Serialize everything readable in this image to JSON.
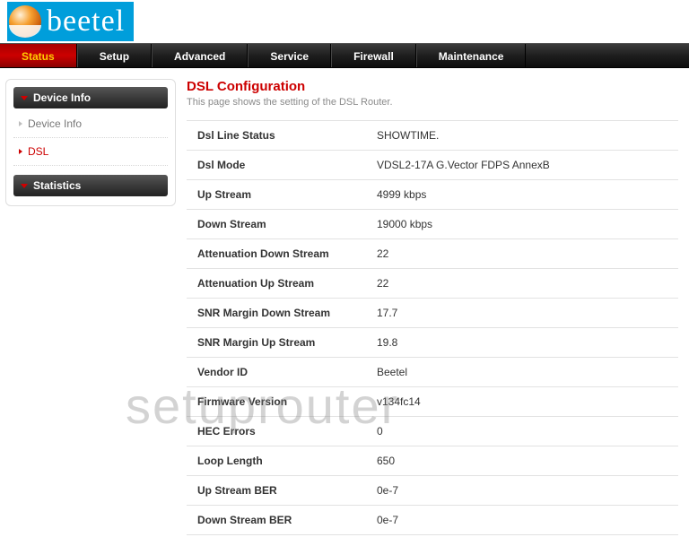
{
  "brand": {
    "name": "beetel"
  },
  "nav": {
    "items": [
      {
        "label": "Status",
        "active": true
      },
      {
        "label": "Setup",
        "active": false
      },
      {
        "label": "Advanced",
        "active": false
      },
      {
        "label": "Service",
        "active": false
      },
      {
        "label": "Firewall",
        "active": false
      },
      {
        "label": "Maintenance",
        "active": false
      }
    ]
  },
  "sidebar": {
    "sections": [
      {
        "title": "Device Info",
        "items": [
          {
            "label": "Device Info",
            "active": false
          },
          {
            "label": "DSL",
            "active": true
          }
        ]
      },
      {
        "title": "Statistics",
        "items": []
      }
    ]
  },
  "page": {
    "title": "DSL Configuration",
    "subtitle": "This page shows the setting of the DSL Router."
  },
  "config_rows": [
    {
      "label": "Dsl Line Status",
      "value": "SHOWTIME."
    },
    {
      "label": "Dsl Mode",
      "value": "VDSL2-17A G.Vector FDPS AnnexB"
    },
    {
      "label": "Up Stream",
      "value": "4999 kbps"
    },
    {
      "label": "Down Stream",
      "value": "19000 kbps"
    },
    {
      "label": "Attenuation Down Stream",
      "value": "22"
    },
    {
      "label": "Attenuation Up Stream",
      "value": "22"
    },
    {
      "label": "SNR Margin Down Stream",
      "value": "17.7"
    },
    {
      "label": "SNR Margin Up Stream",
      "value": "19.8"
    },
    {
      "label": "Vendor ID",
      "value": "Beetel"
    },
    {
      "label": "Firmware Version",
      "value": "v134fc14"
    },
    {
      "label": "HEC Errors",
      "value": "0"
    },
    {
      "label": "Loop Length",
      "value": "650"
    },
    {
      "label": "Up Stream BER",
      "value": "0e-7"
    },
    {
      "label": "Down Stream BER",
      "value": "0e-7"
    }
  ],
  "watermark": "setuprouter",
  "colors": {
    "accent": "#cc0000",
    "nav_bg": "#1e1e1e",
    "logo_bg": "#009edb",
    "border": "#e2e2e2",
    "text_muted": "#8a8a8a"
  }
}
